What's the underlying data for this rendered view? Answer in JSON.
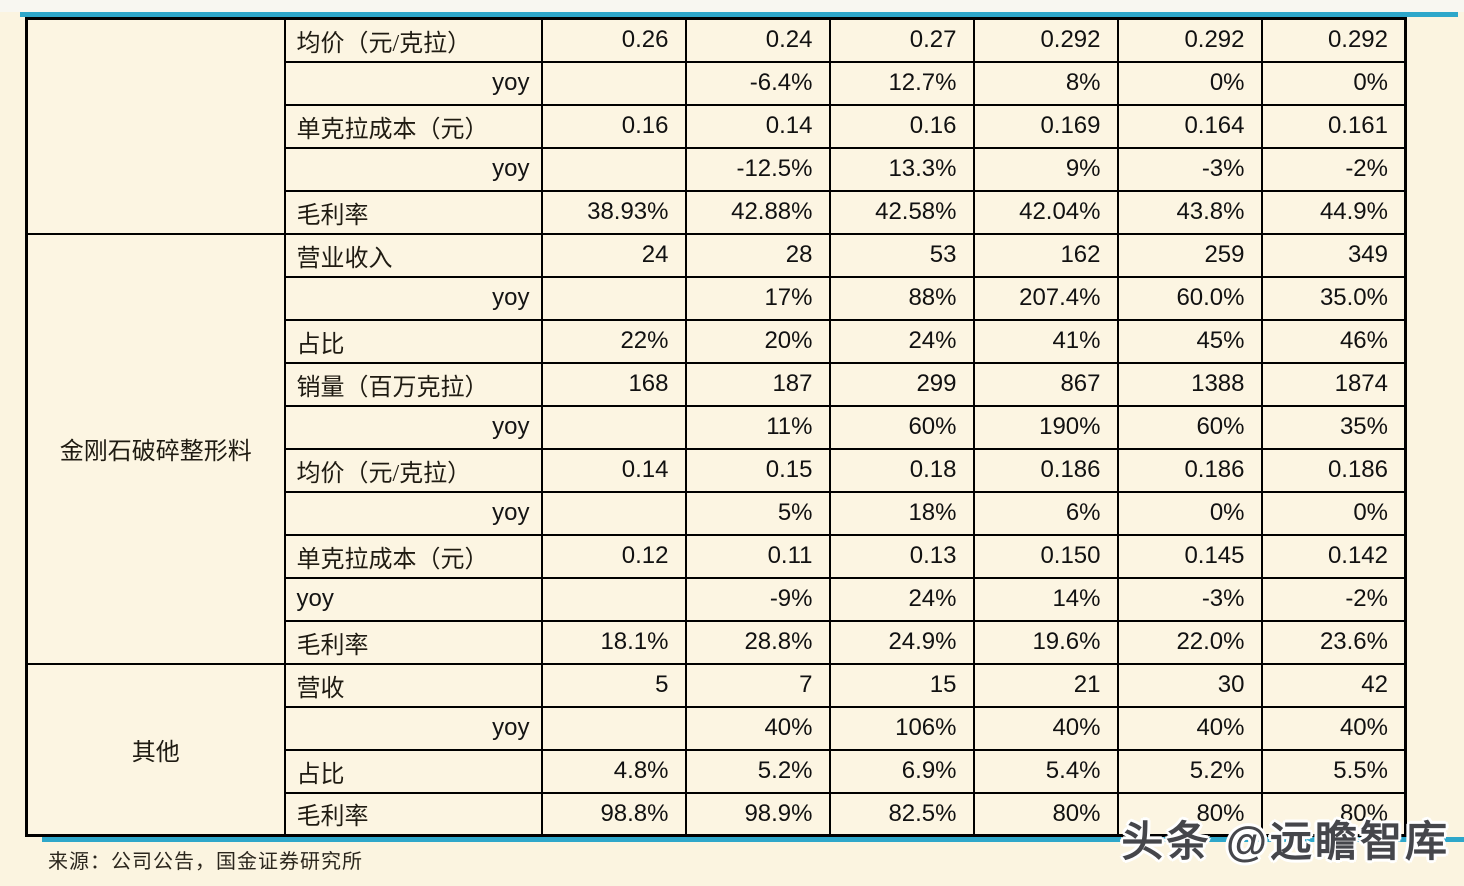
{
  "page": {
    "source_note": "来源：公司公告，国金证券研究所",
    "watermark": "头条 @远瞻智库"
  },
  "colors": {
    "page_background": "#fbf4e0",
    "cell_background": "#fcf5e2",
    "highlight_background": "#d9d5e8",
    "accent_line": "#2ea7ca",
    "border": "#000000",
    "text": "#141414",
    "watermark_text": "#45464b",
    "top_strip": "#f8f7f1"
  },
  "table": {
    "data_column_count": 6,
    "blocks": [
      {
        "category": "",
        "rows": [
          {
            "label": "均价（元/克拉）",
            "label_align": "left",
            "values": [
              "0.26",
              "0.24",
              "0.27",
              "0.292",
              "0.292",
              "0.292"
            ],
            "highlight_last3": false
          },
          {
            "label": "yoy",
            "label_align": "right",
            "values": [
              "",
              "-6.4%",
              "12.7%",
              "8%",
              "0%",
              "0%"
            ],
            "highlight_last3": true
          },
          {
            "label": "单克拉成本（元）",
            "label_align": "left",
            "values": [
              "0.16",
              "0.14",
              "0.16",
              "0.169",
              "0.164",
              "0.161"
            ],
            "highlight_last3": false
          },
          {
            "label": "yoy",
            "label_align": "right",
            "values": [
              "",
              "-12.5%",
              "13.3%",
              "9%",
              "-3%",
              "-2%"
            ],
            "highlight_last3": true
          },
          {
            "label": "毛利率",
            "label_align": "left",
            "values": [
              "38.93%",
              "42.88%",
              "42.58%",
              "42.04%",
              "43.8%",
              "44.9%"
            ],
            "highlight_last3": false
          }
        ]
      },
      {
        "category": "金刚石破碎整形料",
        "rows": [
          {
            "label": "营业收入",
            "label_align": "left",
            "values": [
              "24",
              "28",
              "53",
              "162",
              "259",
              "349"
            ],
            "highlight_last3": false
          },
          {
            "label": "yoy",
            "label_align": "right",
            "values": [
              "",
              "17%",
              "88%",
              "207.4%",
              "60.0%",
              "35.0%"
            ],
            "highlight_last3": false
          },
          {
            "label": "占比",
            "label_align": "left",
            "values": [
              "22%",
              "20%",
              "24%",
              "41%",
              "45%",
              "46%"
            ],
            "highlight_last3": false
          },
          {
            "label": "销量（百万克拉）",
            "label_align": "left",
            "values": [
              "168",
              "187",
              "299",
              "867",
              "1388",
              "1874"
            ],
            "highlight_last3": false
          },
          {
            "label": "yoy",
            "label_align": "right",
            "values": [
              "",
              "11%",
              "60%",
              "190%",
              "60%",
              "35%"
            ],
            "highlight_last3": true
          },
          {
            "label": "均价（元/克拉）",
            "label_align": "left",
            "values": [
              "0.14",
              "0.15",
              "0.18",
              "0.186",
              "0.186",
              "0.186"
            ],
            "highlight_last3": false
          },
          {
            "label": "yoy",
            "label_align": "right",
            "values": [
              "",
              "5%",
              "18%",
              "6%",
              "0%",
              "0%"
            ],
            "highlight_last3": true
          },
          {
            "label": "单克拉成本（元）",
            "label_align": "left",
            "values": [
              "0.12",
              "0.11",
              "0.13",
              "0.150",
              "0.145",
              "0.142"
            ],
            "highlight_last3": false
          },
          {
            "label": "yoy",
            "label_align": "left",
            "values": [
              "",
              "-9%",
              "24%",
              "14%",
              "-3%",
              "-2%"
            ],
            "highlight_last3": true
          },
          {
            "label": "毛利率",
            "label_align": "left",
            "values": [
              "18.1%",
              "28.8%",
              "24.9%",
              "19.6%",
              "22.0%",
              "23.6%"
            ],
            "highlight_last3": false
          }
        ]
      },
      {
        "category": "其他",
        "rows": [
          {
            "label": "营收",
            "label_align": "left",
            "values": [
              "5",
              "7",
              "15",
              "21",
              "30",
              "42"
            ],
            "highlight_last3": false
          },
          {
            "label": "yoy",
            "label_align": "right",
            "values": [
              "",
              "40%",
              "106%",
              "40%",
              "40%",
              "40%"
            ],
            "highlight_last3": true
          },
          {
            "label": "占比",
            "label_align": "left",
            "values": [
              "4.8%",
              "5.2%",
              "6.9%",
              "5.4%",
              "5.2%",
              "5.5%"
            ],
            "highlight_last3": false
          },
          {
            "label": "毛利率",
            "label_align": "left",
            "values": [
              "98.8%",
              "98.9%",
              "82.5%",
              "80%",
              "80%",
              "80%"
            ],
            "highlight_last3": true
          }
        ]
      }
    ]
  }
}
